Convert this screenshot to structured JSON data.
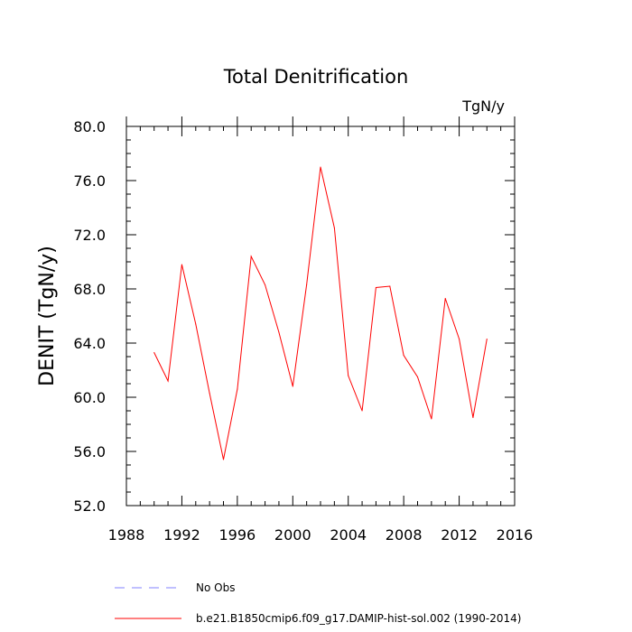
{
  "chart_data": {
    "type": "line",
    "title": "Total Denitrification",
    "units": "TgN/y",
    "ylabel": "DENIT  (TgN/y)",
    "xlabel": "",
    "xlim": [
      1988,
      2016
    ],
    "ylim": [
      52.0,
      80.0
    ],
    "xticks": [
      1988,
      1992,
      1996,
      2000,
      2004,
      2008,
      2012,
      2016
    ],
    "yticks": [
      52.0,
      56.0,
      60.0,
      64.0,
      68.0,
      72.0,
      76.0,
      80.0
    ],
    "xtick_labels": [
      "1988",
      "1992",
      "1996",
      "2000",
      "2004",
      "2008",
      "2012",
      "2016"
    ],
    "ytick_labels": [
      "52.0",
      "56.0",
      "60.0",
      "64.0",
      "68.0",
      "72.0",
      "76.0",
      "80.0"
    ],
    "grid": false,
    "legend_position": "bottom",
    "series": [
      {
        "name": "b.e21.B1850cmip6.f09_g17.DAMIP-hist-sol.002 (1990-2014)",
        "color": "#ff0000",
        "style": "solid",
        "x": [
          1990,
          1991,
          1992,
          1993,
          1994,
          1995,
          1996,
          1997,
          1998,
          1999,
          2000,
          2001,
          2002,
          2003,
          2004,
          2005,
          2006,
          2007,
          2008,
          2009,
          2010,
          2011,
          2012,
          2013,
          2014
        ],
        "values": [
          63.3,
          61.2,
          69.8,
          65.4,
          60.3,
          55.4,
          60.6,
          70.4,
          68.3,
          64.8,
          60.8,
          68.3,
          77.0,
          72.5,
          61.6,
          59.0,
          68.1,
          68.2,
          63.1,
          61.5,
          58.4,
          67.3,
          64.3,
          58.5,
          64.3
        ]
      }
    ],
    "legend": [
      {
        "label": "No Obs",
        "color": "#8080ff",
        "style": "dashed"
      },
      {
        "label": "b.e21.B1850cmip6.f09_g17.DAMIP-hist-sol.002 (1990-2014)",
        "color": "#ff0000",
        "style": "solid"
      }
    ]
  }
}
